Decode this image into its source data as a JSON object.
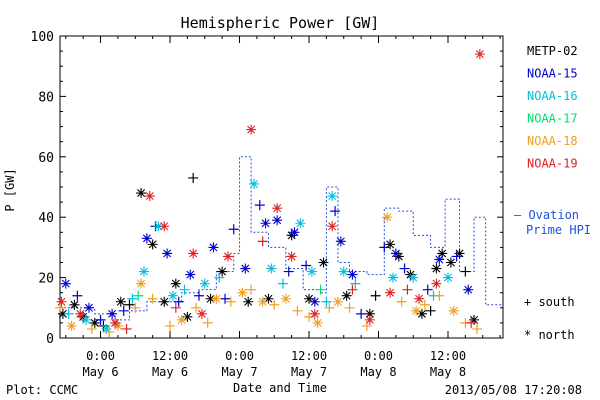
{
  "chart_data": {
    "type": "scatter",
    "title": "Hemispheric Power [GW]",
    "ylabel": "P [GW]",
    "xlabel": "Date and Time",
    "ylim": [
      0,
      100
    ],
    "yticks": [
      0,
      20,
      40,
      60,
      80,
      100
    ],
    "xlim": [
      "2013-05-05 17:00",
      "2013-05-08 21:30"
    ],
    "xticks": [
      {
        "time": "2013-05-06 00:00",
        "line1": "0:00",
        "line2": "May 6"
      },
      {
        "time": "2013-05-06 12:00",
        "line1": "12:00",
        "line2": "May 6"
      },
      {
        "time": "2013-05-07 00:00",
        "line1": "0:00",
        "line2": "May 7"
      },
      {
        "time": "2013-05-07 12:00",
        "line1": "12:00",
        "line2": "May 7"
      },
      {
        "time": "2013-05-08 00:00",
        "line1": "0:00",
        "line2": "May 8"
      },
      {
        "time": "2013-05-08 12:00",
        "line1": "12:00",
        "line2": "May 8"
      }
    ],
    "grid": false,
    "legend_placement": "right",
    "marker_legend": [
      {
        "symbol": "+",
        "label": "south"
      },
      {
        "symbol": "*",
        "label": "north"
      }
    ],
    "series": [
      {
        "name": "METP-02",
        "color": "#000000",
        "points": [
          {
            "t": "2013-05-05 17:30",
            "y": 8,
            "m": "*"
          },
          {
            "t": "2013-05-05 19:30",
            "y": 11,
            "m": "*"
          },
          {
            "t": "2013-05-05 21:00",
            "y": 7,
            "m": "*"
          },
          {
            "t": "2013-05-05 23:00",
            "y": 5,
            "m": "*"
          },
          {
            "t": "2013-05-06 00:30",
            "y": 4,
            "m": "+"
          },
          {
            "t": "2013-05-06 03:30",
            "y": 12,
            "m": "*"
          },
          {
            "t": "2013-05-06 05:00",
            "y": 11,
            "m": "+"
          },
          {
            "t": "2013-05-06 07:00",
            "y": 48,
            "m": "*"
          },
          {
            "t": "2013-05-06 09:00",
            "y": 31,
            "m": "*"
          },
          {
            "t": "2013-05-06 11:00",
            "y": 12,
            "m": "*"
          },
          {
            "t": "2013-05-06 13:00",
            "y": 18,
            "m": "*"
          },
          {
            "t": "2013-05-06 15:00",
            "y": 7,
            "m": "*"
          },
          {
            "t": "2013-05-06 16:00",
            "y": 53,
            "m": "+"
          },
          {
            "t": "2013-05-06 19:00",
            "y": 13,
            "m": "*"
          },
          {
            "t": "2013-05-06 21:00",
            "y": 22,
            "m": "*"
          },
          {
            "t": "2013-05-07 01:30",
            "y": 12,
            "m": "*"
          },
          {
            "t": "2013-05-07 05:00",
            "y": 13,
            "m": "*"
          },
          {
            "t": "2013-05-07 09:00",
            "y": 34,
            "m": "*"
          },
          {
            "t": "2013-05-07 12:00",
            "y": 13,
            "m": "*"
          },
          {
            "t": "2013-05-07 14:30",
            "y": 25,
            "m": "*"
          },
          {
            "t": "2013-05-07 18:30",
            "y": 14,
            "m": "*"
          },
          {
            "t": "2013-05-07 22:30",
            "y": 8,
            "m": "*"
          },
          {
            "t": "2013-05-08 02:00",
            "y": 31,
            "m": "*"
          },
          {
            "t": "2013-05-08 03:30",
            "y": 27,
            "m": "*"
          },
          {
            "t": "2013-05-08 05:30",
            "y": 21,
            "m": "*"
          },
          {
            "t": "2013-05-08 07:30",
            "y": 8,
            "m": "*"
          },
          {
            "t": "2013-05-08 09:00",
            "y": 9,
            "m": "+"
          },
          {
            "t": "2013-05-08 10:00",
            "y": 23,
            "m": "*"
          },
          {
            "t": "2013-05-08 11:00",
            "y": 28,
            "m": "*"
          },
          {
            "t": "2013-05-08 12:30",
            "y": 25,
            "m": "*"
          },
          {
            "t": "2013-05-08 14:00",
            "y": 28,
            "m": "*"
          },
          {
            "t": "2013-05-08 15:00",
            "y": 22,
            "m": "+"
          },
          {
            "t": "2013-05-08 16:30",
            "y": 6,
            "m": "*"
          },
          {
            "t": "2013-05-07 23:30",
            "y": 14,
            "m": "+"
          }
        ]
      },
      {
        "name": "NOAA-15",
        "color": "#0000cc",
        "points": [
          {
            "t": "2013-05-05 18:00",
            "y": 18,
            "m": "*"
          },
          {
            "t": "2013-05-05 20:00",
            "y": 14,
            "m": "+"
          },
          {
            "t": "2013-05-05 22:00",
            "y": 10,
            "m": "*"
          },
          {
            "t": "2013-05-06 00:00",
            "y": 6,
            "m": "+"
          },
          {
            "t": "2013-05-06 02:00",
            "y": 8,
            "m": "*"
          },
          {
            "t": "2013-05-06 04:00",
            "y": 9,
            "m": "+"
          },
          {
            "t": "2013-05-06 08:00",
            "y": 33,
            "m": "*"
          },
          {
            "t": "2013-05-06 09:30",
            "y": 37,
            "m": "+"
          },
          {
            "t": "2013-05-06 11:30",
            "y": 28,
            "m": "*"
          },
          {
            "t": "2013-05-06 13:30",
            "y": 12,
            "m": "+"
          },
          {
            "t": "2013-05-06 15:30",
            "y": 21,
            "m": "*"
          },
          {
            "t": "2013-05-06 17:00",
            "y": 14,
            "m": "+"
          },
          {
            "t": "2013-05-06 19:30",
            "y": 30,
            "m": "*"
          },
          {
            "t": "2013-05-06 21:30",
            "y": 13,
            "m": "+"
          },
          {
            "t": "2013-05-06 23:00",
            "y": 36,
            "m": "+"
          },
          {
            "t": "2013-05-07 01:00",
            "y": 23,
            "m": "*"
          },
          {
            "t": "2013-05-07 03:30",
            "y": 44,
            "m": "+"
          },
          {
            "t": "2013-05-07 04:30",
            "y": 38,
            "m": "*"
          },
          {
            "t": "2013-05-07 06:30",
            "y": 39,
            "m": "*"
          },
          {
            "t": "2013-05-07 08:30",
            "y": 22,
            "m": "+"
          },
          {
            "t": "2013-05-07 09:30",
            "y": 35,
            "m": "*"
          },
          {
            "t": "2013-05-07 11:30",
            "y": 24,
            "m": "+"
          },
          {
            "t": "2013-05-07 13:00",
            "y": 12,
            "m": "*"
          },
          {
            "t": "2013-05-07 16:30",
            "y": 42,
            "m": "+"
          },
          {
            "t": "2013-05-07 17:30",
            "y": 32,
            "m": "*"
          },
          {
            "t": "2013-05-07 21:00",
            "y": 8,
            "m": "+"
          },
          {
            "t": "2013-05-08 01:00",
            "y": 30,
            "m": "+"
          },
          {
            "t": "2013-05-08 03:00",
            "y": 28,
            "m": "*"
          },
          {
            "t": "2013-05-08 04:30",
            "y": 23,
            "m": "+"
          },
          {
            "t": "2013-05-08 08:30",
            "y": 16,
            "m": "+"
          },
          {
            "t": "2013-05-08 10:30",
            "y": 26,
            "m": "*"
          },
          {
            "t": "2013-05-08 13:30",
            "y": 27,
            "m": "+"
          },
          {
            "t": "2013-05-08 15:30",
            "y": 16,
            "m": "*"
          },
          {
            "t": "2013-05-07 19:30",
            "y": 21,
            "m": "*"
          }
        ]
      },
      {
        "name": "NOAA-16",
        "color": "#00bfdf",
        "points": [
          {
            "t": "2013-05-05 18:30",
            "y": 8,
            "m": "+"
          },
          {
            "t": "2013-05-05 21:30",
            "y": 6,
            "m": "*"
          },
          {
            "t": "2013-05-06 01:00",
            "y": 3,
            "m": "*"
          },
          {
            "t": "2013-05-06 05:30",
            "y": 13,
            "m": "+"
          },
          {
            "t": "2013-05-06 07:30",
            "y": 22,
            "m": "*"
          },
          {
            "t": "2013-05-06 10:00",
            "y": 37,
            "m": "*"
          },
          {
            "t": "2013-05-06 12:30",
            "y": 14,
            "m": "*"
          },
          {
            "t": "2013-05-06 14:30",
            "y": 16,
            "m": "+"
          },
          {
            "t": "2013-05-06 18:00",
            "y": 18,
            "m": "*"
          },
          {
            "t": "2013-05-06 20:30",
            "y": 20,
            "m": "+"
          },
          {
            "t": "2013-05-07 02:30",
            "y": 51,
            "m": "*"
          },
          {
            "t": "2013-05-07 05:30",
            "y": 23,
            "m": "*"
          },
          {
            "t": "2013-05-07 07:30",
            "y": 18,
            "m": "+"
          },
          {
            "t": "2013-05-07 10:30",
            "y": 38,
            "m": "*"
          },
          {
            "t": "2013-05-07 12:30",
            "y": 22,
            "m": "*"
          },
          {
            "t": "2013-05-07 15:00",
            "y": 12,
            "m": "+"
          },
          {
            "t": "2013-05-07 16:00",
            "y": 47,
            "m": "*"
          },
          {
            "t": "2013-05-07 18:00",
            "y": 22,
            "m": "*"
          },
          {
            "t": "2013-05-07 20:00",
            "y": 18,
            "m": "+"
          },
          {
            "t": "2013-05-08 02:30",
            "y": 20,
            "m": "*"
          },
          {
            "t": "2013-05-08 06:00",
            "y": 20,
            "m": "*"
          },
          {
            "t": "2013-05-08 09:30",
            "y": 14,
            "m": "+"
          },
          {
            "t": "2013-05-08 12:00",
            "y": 20,
            "m": "*"
          }
        ]
      },
      {
        "name": "NOAA-17",
        "color": "#00df70",
        "points": [
          {
            "t": "2013-05-06 06:30",
            "y": 14,
            "m": "+"
          },
          {
            "t": "2013-05-07 14:00",
            "y": 16,
            "m": "+"
          }
        ]
      },
      {
        "name": "NOAA-18",
        "color": "#ef9f20",
        "points": [
          {
            "t": "2013-05-05 17:00",
            "y": 10,
            "m": "+"
          },
          {
            "t": "2013-05-05 19:00",
            "y": 4,
            "m": "*"
          },
          {
            "t": "2013-05-05 22:30",
            "y": 3,
            "m": "+"
          },
          {
            "t": "2013-05-06 01:30",
            "y": 2,
            "m": "+"
          },
          {
            "t": "2013-05-06 03:00",
            "y": 4,
            "m": "*"
          },
          {
            "t": "2013-05-06 06:00",
            "y": 10,
            "m": "+"
          },
          {
            "t": "2013-05-06 07:00",
            "y": 18,
            "m": "*"
          },
          {
            "t": "2013-05-06 09:00",
            "y": 13,
            "m": "+"
          },
          {
            "t": "2013-05-06 12:00",
            "y": 4,
            "m": "+"
          },
          {
            "t": "2013-05-06 14:00",
            "y": 6,
            "m": "*"
          },
          {
            "t": "2013-05-06 16:30",
            "y": 10,
            "m": "+"
          },
          {
            "t": "2013-05-06 18:30",
            "y": 5,
            "m": "+"
          },
          {
            "t": "2013-05-06 20:00",
            "y": 13,
            "m": "*"
          },
          {
            "t": "2013-05-06 22:30",
            "y": 12,
            "m": "+"
          },
          {
            "t": "2013-05-07 00:30",
            "y": 15,
            "m": "*"
          },
          {
            "t": "2013-05-07 02:00",
            "y": 16,
            "m": "+"
          },
          {
            "t": "2013-05-07 04:00",
            "y": 12,
            "m": "*"
          },
          {
            "t": "2013-05-07 06:00",
            "y": 11,
            "m": "+"
          },
          {
            "t": "2013-05-07 08:00",
            "y": 13,
            "m": "*"
          },
          {
            "t": "2013-05-07 10:00",
            "y": 9,
            "m": "+"
          },
          {
            "t": "2013-05-07 12:00",
            "y": 7,
            "m": "+"
          },
          {
            "t": "2013-05-07 13:30",
            "y": 5,
            "m": "*"
          },
          {
            "t": "2013-05-07 15:30",
            "y": 10,
            "m": "+"
          },
          {
            "t": "2013-05-07 17:00",
            "y": 12,
            "m": "*"
          },
          {
            "t": "2013-05-07 19:00",
            "y": 10,
            "m": "+"
          },
          {
            "t": "2013-05-07 22:00",
            "y": 4,
            "m": "+"
          },
          {
            "t": "2013-05-08 01:30",
            "y": 40,
            "m": "*"
          },
          {
            "t": "2013-05-08 04:00",
            "y": 12,
            "m": "+"
          },
          {
            "t": "2013-05-08 06:30",
            "y": 9,
            "m": "*"
          },
          {
            "t": "2013-05-08 08:00",
            "y": 11,
            "m": "+"
          },
          {
            "t": "2013-05-08 10:30",
            "y": 14,
            "m": "+"
          },
          {
            "t": "2013-05-08 13:00",
            "y": 9,
            "m": "*"
          },
          {
            "t": "2013-05-08 15:00",
            "y": 5,
            "m": "+"
          },
          {
            "t": "2013-05-08 17:00",
            "y": 3,
            "m": "+"
          }
        ]
      },
      {
        "name": "NOAA-19",
        "color": "#df2020",
        "points": [
          {
            "t": "2013-05-05 17:15",
            "y": 12,
            "m": "*"
          },
          {
            "t": "2013-05-05 20:30",
            "y": 8,
            "m": "*"
          },
          {
            "t": "2013-05-06 02:30",
            "y": 5,
            "m": "*"
          },
          {
            "t": "2013-05-06 04:30",
            "y": 3,
            "m": "+"
          },
          {
            "t": "2013-05-06 08:30",
            "y": 47,
            "m": "*"
          },
          {
            "t": "2013-05-06 11:00",
            "y": 37,
            "m": "*"
          },
          {
            "t": "2013-05-06 13:00",
            "y": 10,
            "m": "+"
          },
          {
            "t": "2013-05-06 16:00",
            "y": 28,
            "m": "*"
          },
          {
            "t": "2013-05-06 17:30",
            "y": 8,
            "m": "*"
          },
          {
            "t": "2013-05-06 22:00",
            "y": 27,
            "m": "*"
          },
          {
            "t": "2013-05-07 02:00",
            "y": 69,
            "m": "*"
          },
          {
            "t": "2013-05-07 04:00",
            "y": 32,
            "m": "+"
          },
          {
            "t": "2013-05-07 06:30",
            "y": 43,
            "m": "*"
          },
          {
            "t": "2013-05-07 09:00",
            "y": 27,
            "m": "*"
          },
          {
            "t": "2013-05-07 13:00",
            "y": 8,
            "m": "*"
          },
          {
            "t": "2013-05-07 16:00",
            "y": 37,
            "m": "*"
          },
          {
            "t": "2013-05-07 19:30",
            "y": 16,
            "m": "+"
          },
          {
            "t": "2013-05-07 22:30",
            "y": 6,
            "m": "*"
          },
          {
            "t": "2013-05-08 02:00",
            "y": 15,
            "m": "*"
          },
          {
            "t": "2013-05-08 05:00",
            "y": 16,
            "m": "+"
          },
          {
            "t": "2013-05-08 07:00",
            "y": 13,
            "m": "*"
          },
          {
            "t": "2013-05-08 10:00",
            "y": 18,
            "m": "*"
          },
          {
            "t": "2013-05-08 16:00",
            "y": 5,
            "m": "+"
          },
          {
            "t": "2013-05-08 17:30",
            "y": 94,
            "m": "*"
          }
        ]
      }
    ],
    "ovation": {
      "name": "— Ovation Prime HPI",
      "label_line1": "— Ovation",
      "label_line2": "Prime HPI",
      "color": "#2050df",
      "steps": [
        [
          "2013-05-05 17:00",
          10
        ],
        [
          "2013-05-05 20:00",
          10
        ],
        [
          "2013-05-05 23:00",
          8
        ],
        [
          "2013-05-06 02:00",
          6
        ],
        [
          "2013-05-06 05:00",
          9
        ],
        [
          "2013-05-06 08:00",
          12
        ],
        [
          "2013-05-06 11:00",
          12
        ],
        [
          "2013-05-06 14:00",
          15
        ],
        [
          "2013-05-06 17:00",
          16
        ],
        [
          "2013-05-06 20:00",
          22
        ],
        [
          "2013-05-06 23:00",
          28
        ],
        [
          "2013-05-07 00:00",
          60
        ],
        [
          "2013-05-07 02:00",
          35
        ],
        [
          "2013-05-07 05:00",
          30
        ],
        [
          "2013-05-07 08:00",
          23
        ],
        [
          "2013-05-07 11:00",
          16
        ],
        [
          "2013-05-07 14:00",
          15
        ],
        [
          "2013-05-07 15:00",
          50
        ],
        [
          "2013-05-07 17:00",
          25
        ],
        [
          "2013-05-07 19:00",
          22
        ],
        [
          "2013-05-07 22:00",
          21
        ],
        [
          "2013-05-08 01:00",
          43
        ],
        [
          "2013-05-08 03:30",
          42
        ],
        [
          "2013-05-08 06:00",
          34
        ],
        [
          "2013-05-08 09:00",
          30
        ],
        [
          "2013-05-08 11:30",
          46
        ],
        [
          "2013-05-08 14:00",
          22
        ],
        [
          "2013-05-08 16:30",
          40
        ],
        [
          "2013-05-08 18:30",
          11
        ],
        [
          "2013-05-08 21:30",
          11
        ]
      ]
    }
  },
  "footer": {
    "plot_credit": "Plot: CCMC",
    "timestamp": "2013/05/08 17:20:08"
  }
}
